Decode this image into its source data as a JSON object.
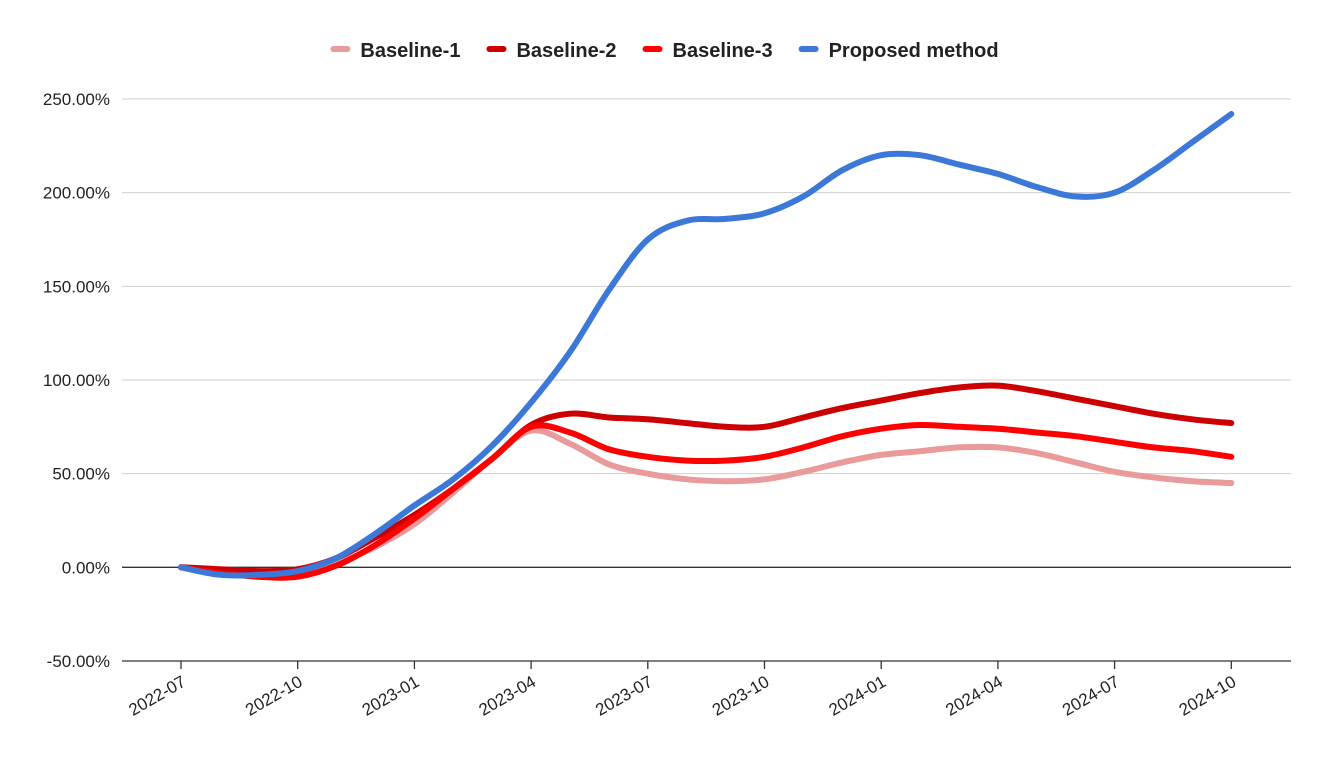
{
  "chart_data": {
    "type": "line",
    "title": "",
    "xlabel": "",
    "ylabel": "",
    "x": [
      "2022-07",
      "2022-08",
      "2022-09",
      "2022-10",
      "2022-11",
      "2022-12",
      "2023-01",
      "2023-02",
      "2023-03",
      "2023-04",
      "2023-05",
      "2023-06",
      "2023-07",
      "2023-08",
      "2023-09",
      "2023-10",
      "2023-11",
      "2023-12",
      "2024-01",
      "2024-02",
      "2024-03",
      "2024-04",
      "2024-05",
      "2024-06",
      "2024-07",
      "2024-08",
      "2024-09",
      "2024-10"
    ],
    "xticks": [
      "2022-07",
      "2022-10",
      "2023-01",
      "2023-04",
      "2023-07",
      "2023-10",
      "2024-01",
      "2024-04",
      "2024-07",
      "2024-10"
    ],
    "yticks": [
      "250.00%",
      "200.00%",
      "150.00%",
      "100.00%",
      "50.00%",
      "0.00%",
      "-50.00%"
    ],
    "ylim": [
      -50,
      250
    ],
    "grid": true,
    "legend_position": "top-center",
    "series": [
      {
        "name": "Baseline-1",
        "color": "#e99a9a",
        "values": [
          0,
          -3,
          -5,
          -4,
          2,
          11,
          23,
          40,
          58,
          73,
          66,
          55,
          50,
          47,
          46,
          47,
          51,
          56,
          60,
          62,
          64,
          64,
          61,
          56,
          51,
          48,
          46,
          45
        ]
      },
      {
        "name": "Baseline-2",
        "color": "#cc0000",
        "values": [
          0,
          -1,
          -2,
          -1,
          5,
          16,
          28,
          42,
          58,
          76,
          82,
          80,
          79,
          77,
          75,
          75,
          80,
          85,
          89,
          93,
          96,
          97,
          94,
          90,
          86,
          82,
          79,
          77
        ]
      },
      {
        "name": "Baseline-3",
        "color": "#ff0000",
        "values": [
          0,
          -3,
          -5,
          -5,
          1,
          12,
          26,
          42,
          58,
          75,
          72,
          63,
          59,
          57,
          57,
          59,
          64,
          70,
          74,
          76,
          75,
          74,
          72,
          70,
          67,
          64,
          62,
          59
        ]
      },
      {
        "name": "Proposed method",
        "color": "#3c78d8",
        "values": [
          0,
          -4,
          -4,
          -2,
          5,
          18,
          33,
          47,
          65,
          88,
          115,
          148,
          175,
          185,
          186,
          189,
          198,
          212,
          220,
          220,
          215,
          210,
          203,
          198,
          200,
          212,
          227,
          242
        ]
      }
    ]
  }
}
